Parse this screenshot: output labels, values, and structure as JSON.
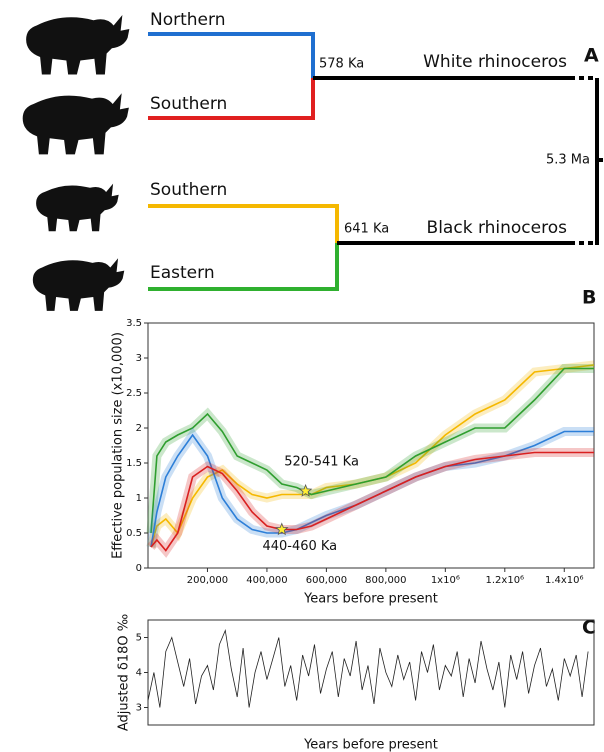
{
  "panels": [
    "A",
    "B",
    "C"
  ],
  "tree": {
    "white": {
      "label": "White rhinoceros",
      "split": "578 Ka",
      "taxa": [
        "Northern",
        "Southern"
      ]
    },
    "black": {
      "label": "Black rhinoceros",
      "split": "641 Ka",
      "taxa": [
        "Southern",
        "Eastern"
      ]
    },
    "split": "5.3 Ma"
  },
  "chart_data": [
    {
      "type": "line",
      "y_label": "Effective population size (x10,000)",
      "x_label": "Years before present",
      "xlim": [
        0,
        1500000
      ],
      "ylim": [
        0,
        3.5
      ],
      "xticks": [
        {
          "value": 200000,
          "label": "200,000"
        },
        {
          "value": 400000,
          "label": "400,000"
        },
        {
          "value": 600000,
          "label": "600,000"
        },
        {
          "value": 800000,
          "label": "800,000"
        },
        {
          "value": 1000000,
          "label": "1x10⁶"
        },
        {
          "value": 1200000,
          "label": "1.2x10⁶"
        },
        {
          "value": 1400000,
          "label": "1.4x10⁶"
        }
      ],
      "yticks": [
        0,
        0.5,
        1,
        1.5,
        2,
        2.5,
        3,
        3.5
      ],
      "x": [
        10000,
        30000,
        60000,
        100000,
        150000,
        200000,
        250000,
        300000,
        350000,
        400000,
        450000,
        500000,
        550000,
        600000,
        700000,
        800000,
        900000,
        1000000,
        1100000,
        1200000,
        1300000,
        1400000,
        1500000
      ],
      "series": [
        {
          "color": "#f5b800",
          "values": [
            0.3,
            0.6,
            0.7,
            0.5,
            1.0,
            1.3,
            1.4,
            1.2,
            1.05,
            1.0,
            1.05,
            1.05,
            1.05,
            1.15,
            1.2,
            1.3,
            1.5,
            1.9,
            2.2,
            2.4,
            2.8,
            2.85,
            2.9
          ]
        },
        {
          "color": "#2f9e2f",
          "values": [
            0.5,
            1.6,
            1.8,
            1.9,
            2.0,
            2.2,
            1.95,
            1.6,
            1.5,
            1.4,
            1.2,
            1.15,
            1.05,
            1.1,
            1.2,
            1.3,
            1.6,
            1.8,
            2.0,
            2.0,
            2.4,
            2.85,
            2.85
          ]
        },
        {
          "color": "#2d7fd8",
          "values": [
            0.3,
            0.8,
            1.3,
            1.6,
            1.9,
            1.6,
            1.0,
            0.7,
            0.55,
            0.5,
            0.5,
            0.55,
            0.65,
            0.75,
            0.9,
            1.1,
            1.3,
            1.45,
            1.5,
            1.6,
            1.75,
            1.95,
            1.95
          ]
        },
        {
          "color": "#d92020",
          "values": [
            0.3,
            0.4,
            0.25,
            0.5,
            1.3,
            1.45,
            1.35,
            1.1,
            0.8,
            0.6,
            0.55,
            0.55,
            0.6,
            0.7,
            0.9,
            1.1,
            1.3,
            1.45,
            1.55,
            1.6,
            1.65,
            1.65,
            1.65
          ]
        }
      ],
      "annotations": [
        {
          "text": "520-541 Ka",
          "x": 530000,
          "y": 1.1
        },
        {
          "text": "440-460 Ka",
          "x": 450000,
          "y": 0.55
        }
      ]
    },
    {
      "type": "line",
      "y_label": "Adjusted δ18O ‰",
      "x_label": "Years before present",
      "xlim": [
        0,
        1500000
      ],
      "ylim": [
        2.5,
        5.5
      ],
      "yticks": [
        3,
        4,
        5
      ],
      "x": [
        0,
        20000,
        40000,
        60000,
        80000,
        100000,
        120000,
        140000,
        160000,
        180000,
        200000,
        220000,
        240000,
        260000,
        280000,
        300000,
        320000,
        340000,
        360000,
        380000,
        400000,
        420000,
        440000,
        460000,
        480000,
        500000,
        520000,
        540000,
        560000,
        580000,
        600000,
        620000,
        640000,
        660000,
        680000,
        700000,
        720000,
        740000,
        760000,
        780000,
        800000,
        820000,
        840000,
        860000,
        880000,
        900000,
        920000,
        940000,
        960000,
        980000,
        1000000,
        1020000,
        1040000,
        1060000,
        1080000,
        1100000,
        1120000,
        1140000,
        1160000,
        1180000,
        1200000,
        1220000,
        1240000,
        1260000,
        1280000,
        1300000,
        1320000,
        1340000,
        1360000,
        1380000,
        1400000,
        1420000,
        1440000,
        1460000,
        1480000
      ],
      "series": [
        {
          "color": "#222222",
          "values": [
            3.2,
            4.0,
            3.0,
            4.6,
            5.0,
            4.3,
            3.6,
            4.4,
            3.1,
            3.9,
            4.2,
            3.5,
            4.8,
            5.2,
            4.1,
            3.3,
            4.7,
            3.0,
            4.0,
            4.6,
            3.8,
            4.4,
            5.0,
            3.6,
            4.2,
            3.2,
            4.5,
            3.9,
            4.8,
            3.4,
            4.1,
            4.6,
            3.3,
            4.4,
            3.9,
            4.9,
            3.5,
            4.2,
            3.1,
            4.7,
            4.0,
            3.6,
            4.5,
            3.8,
            4.3,
            3.2,
            4.6,
            4.0,
            4.8,
            3.5,
            4.2,
            3.9,
            4.6,
            3.3,
            4.4,
            3.7,
            4.9,
            4.1,
            3.5,
            4.3,
            3.0,
            4.5,
            3.8,
            4.6,
            3.4,
            4.2,
            4.7,
            3.6,
            4.1,
            3.2,
            4.4,
            3.9,
            4.5,
            3.3,
            4.6
          ]
        }
      ]
    }
  ]
}
